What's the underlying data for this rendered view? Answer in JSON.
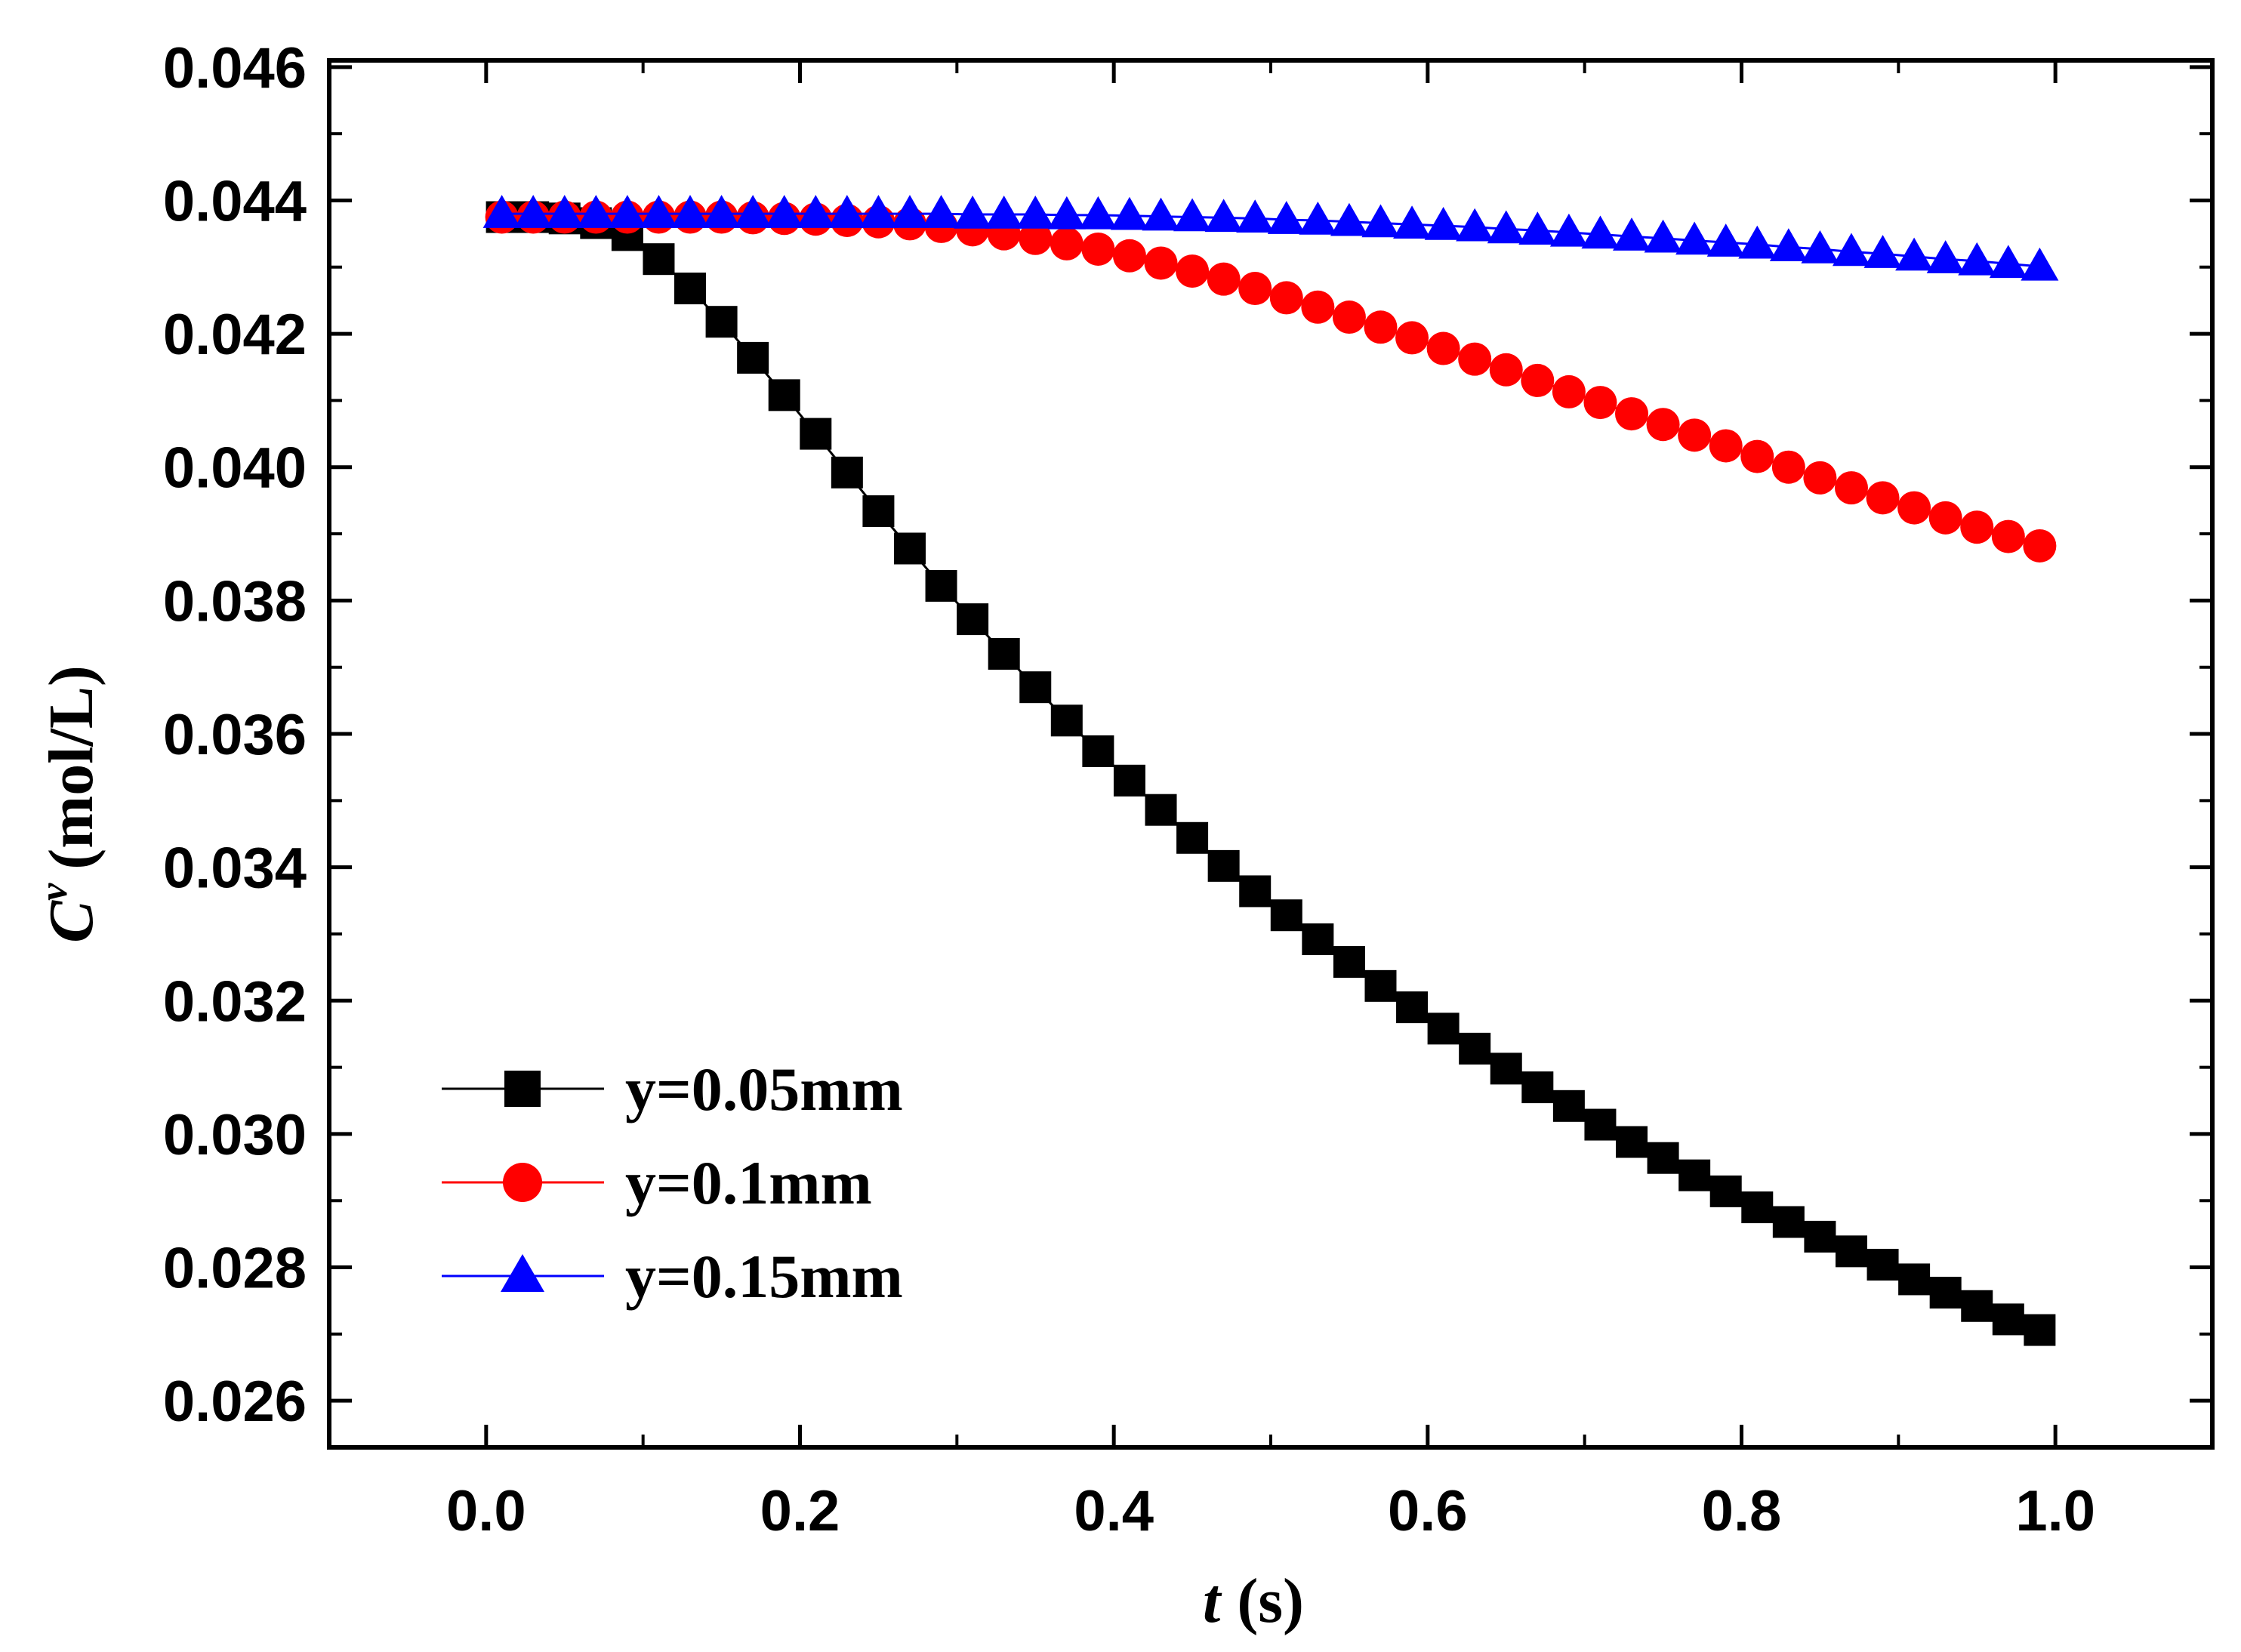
{
  "chart_data": {
    "type": "line",
    "title": "",
    "xlabel": {
      "var": "t",
      "unit": "(s)"
    },
    "ylabel": {
      "var": "C",
      "sup": "v",
      "unit": "(mol/L)"
    },
    "xlim": [
      -0.1,
      1.1
    ],
    "ylim": [
      0.0253,
      0.0461
    ],
    "x_ticks": [
      0.0,
      0.2,
      0.4,
      0.6,
      0.8,
      1.0
    ],
    "x_tick_labels": [
      "0.0",
      "0.2",
      "0.4",
      "0.6",
      "0.8",
      "1.0"
    ],
    "y_ticks": [
      0.026,
      0.028,
      0.03,
      0.032,
      0.034,
      0.036,
      0.038,
      0.04,
      0.042,
      0.044,
      0.046
    ],
    "y_tick_labels": [
      "0.026",
      "0.028",
      "0.030",
      "0.032",
      "0.034",
      "0.036",
      "0.038",
      "0.040",
      "0.042",
      "0.044",
      "0.046"
    ],
    "grid": false,
    "legend_position": "bottom-left",
    "x": [
      0.01,
      0.03,
      0.05,
      0.07,
      0.09,
      0.11,
      0.13,
      0.15,
      0.17,
      0.19,
      0.21,
      0.23,
      0.25,
      0.27,
      0.29,
      0.31,
      0.33,
      0.35,
      0.37,
      0.39,
      0.41,
      0.43,
      0.45,
      0.47,
      0.49,
      0.51,
      0.53,
      0.55,
      0.57,
      0.59,
      0.61,
      0.63,
      0.65,
      0.67,
      0.69,
      0.71,
      0.73,
      0.75,
      0.77,
      0.79,
      0.81,
      0.83,
      0.85,
      0.87,
      0.89,
      0.91,
      0.93,
      0.95,
      0.97,
      0.99
    ],
    "series": [
      {
        "name": "y=0.05mm",
        "color": "#000000",
        "marker": "square",
        "values": [
          0.04375,
          0.04375,
          0.04373,
          0.04366,
          0.04348,
          0.04312,
          0.04268,
          0.04218,
          0.04164,
          0.04108,
          0.0405,
          0.03992,
          0.03934,
          0.03878,
          0.03822,
          0.03772,
          0.0372,
          0.0367,
          0.0362,
          0.03574,
          0.0353,
          0.03486,
          0.03444,
          0.03402,
          0.03364,
          0.03328,
          0.03292,
          0.03258,
          0.03222,
          0.0319,
          0.03158,
          0.03128,
          0.03098,
          0.0307,
          0.03042,
          0.03014,
          0.02988,
          0.02964,
          0.02938,
          0.02914,
          0.0289,
          0.02868,
          0.02846,
          0.02824,
          0.02804,
          0.02782,
          0.02762,
          0.02742,
          0.02722,
          0.02706
        ]
      },
      {
        "name": "y=0.1mm",
        "color": "#ff0000",
        "marker": "circle",
        "values": [
          0.04375,
          0.04375,
          0.04375,
          0.04375,
          0.04375,
          0.04375,
          0.04375,
          0.04375,
          0.04374,
          0.04373,
          0.04372,
          0.0437,
          0.04368,
          0.04365,
          0.04361,
          0.04356,
          0.0435,
          0.04343,
          0.04335,
          0.04327,
          0.04317,
          0.04306,
          0.04294,
          0.04282,
          0.04268,
          0.04254,
          0.0424,
          0.04225,
          0.0421,
          0.04194,
          0.04178,
          0.04162,
          0.04146,
          0.0413,
          0.04113,
          0.04097,
          0.0408,
          0.04064,
          0.04048,
          0.04032,
          0.04016,
          0.04,
          0.03984,
          0.03969,
          0.03954,
          0.03939,
          0.03924,
          0.0391,
          0.03896,
          0.03882
        ]
      },
      {
        "name": "y=0.15mm",
        "color": "#0000ff",
        "marker": "triangle",
        "values": [
          0.0438,
          0.0438,
          0.0438,
          0.0438,
          0.0438,
          0.0438,
          0.0438,
          0.0438,
          0.0438,
          0.0438,
          0.0438,
          0.0438,
          0.0438,
          0.0438,
          0.0438,
          0.04379,
          0.04379,
          0.04379,
          0.04378,
          0.04378,
          0.04377,
          0.04376,
          0.04375,
          0.04374,
          0.04373,
          0.04371,
          0.0437,
          0.04368,
          0.04366,
          0.04364,
          0.04362,
          0.0436,
          0.04357,
          0.04355,
          0.04352,
          0.04349,
          0.04346,
          0.04343,
          0.0434,
          0.04337,
          0.04334,
          0.0433,
          0.04327,
          0.04323,
          0.0432,
          0.04316,
          0.04312,
          0.04309,
          0.04305,
          0.04301
        ]
      }
    ]
  }
}
